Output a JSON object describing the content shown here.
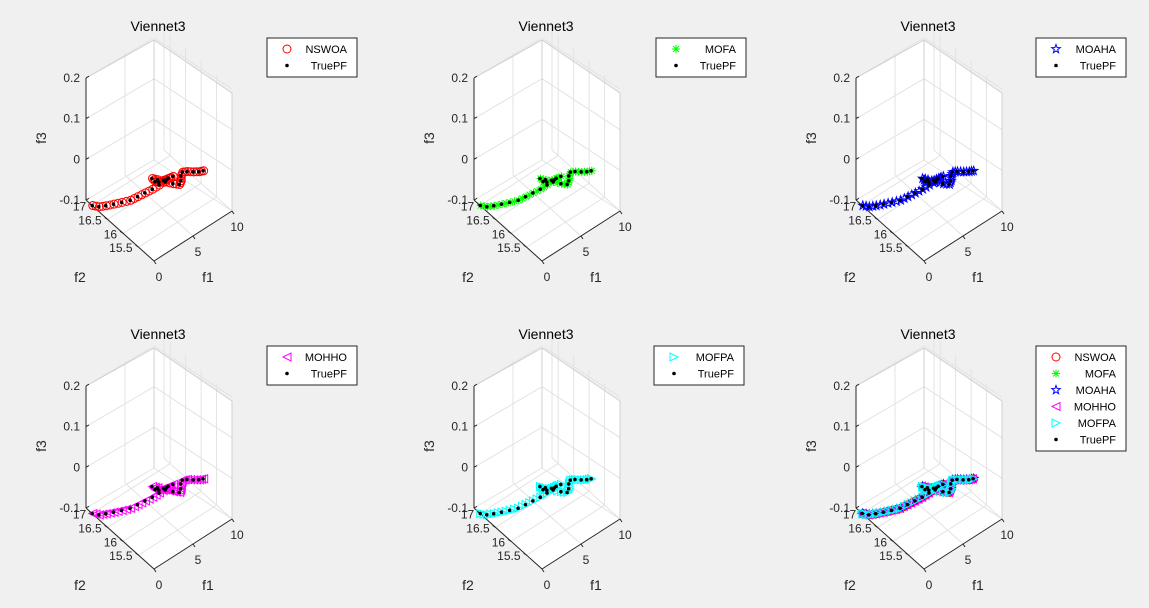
{
  "figure": {
    "background": "#f0f0f0"
  },
  "chart_data": [
    {
      "type": "scatter3d",
      "title": "Viennet3",
      "xlabel": "f1",
      "ylabel": "f2",
      "zlabel": "f3",
      "xlim": [
        0,
        10
      ],
      "ylim": [
        15,
        17.2
      ],
      "zlim": [
        -0.1,
        0.2
      ],
      "xticks": [
        "0",
        "5",
        "10"
      ],
      "yticks": [
        "15.5",
        "16",
        "16.5",
        "17"
      ],
      "zticks": [
        "-0.1",
        "0",
        "0.1",
        "0.2"
      ],
      "series": [
        {
          "name": "NSWOA",
          "marker": "circle",
          "color": "#ff0000"
        },
        {
          "name": "TruePF",
          "marker": "dot",
          "color": "#000000"
        }
      ],
      "legend": [
        "NSWOA",
        "TruePF"
      ]
    },
    {
      "type": "scatter3d",
      "title": "Viennet3",
      "xlabel": "f1",
      "ylabel": "f2",
      "zlabel": "f3",
      "xlim": [
        0,
        10
      ],
      "ylim": [
        15,
        17.2
      ],
      "zlim": [
        -0.1,
        0.2
      ],
      "xticks": [
        "0",
        "5",
        "10"
      ],
      "yticks": [
        "15.5",
        "16",
        "16.5",
        "17"
      ],
      "zticks": [
        "-0.1",
        "0",
        "0.1",
        "0.2"
      ],
      "series": [
        {
          "name": "MOFA",
          "marker": "asterisk",
          "color": "#00ff00"
        },
        {
          "name": "TruePF",
          "marker": "dot",
          "color": "#000000"
        }
      ],
      "legend": [
        "MOFA",
        "TruePF"
      ]
    },
    {
      "type": "scatter3d",
      "title": "Viennet3",
      "xlabel": "f1",
      "ylabel": "f2",
      "zlabel": "f3",
      "xlim": [
        0,
        10
      ],
      "ylim": [
        15,
        17.2
      ],
      "zlim": [
        -0.1,
        0.2
      ],
      "xticks": [
        "0",
        "5",
        "10"
      ],
      "yticks": [
        "15.5",
        "16",
        "16.5",
        "17"
      ],
      "zticks": [
        "-0.1",
        "0",
        "0.1",
        "0.2"
      ],
      "series": [
        {
          "name": "MOAHA",
          "marker": "star",
          "color": "#0000ff"
        },
        {
          "name": "TruePF",
          "marker": "dot",
          "color": "#000000"
        }
      ],
      "legend": [
        "MOAHA",
        "TruePF"
      ]
    },
    {
      "type": "scatter3d",
      "title": "Viennet3",
      "xlabel": "f1",
      "ylabel": "f2",
      "zlabel": "f3",
      "xlim": [
        0,
        10
      ],
      "ylim": [
        15,
        17.2
      ],
      "zlim": [
        -0.1,
        0.2
      ],
      "xticks": [
        "0",
        "5",
        "10"
      ],
      "yticks": [
        "15.5",
        "16",
        "16.5",
        "17"
      ],
      "zticks": [
        "-0.1",
        "0",
        "0.1",
        "0.2"
      ],
      "series": [
        {
          "name": "MOHHO",
          "marker": "triangle-left",
          "color": "#ff00ff"
        },
        {
          "name": "TruePF",
          "marker": "dot",
          "color": "#000000"
        }
      ],
      "legend": [
        "MOHHO",
        "TruePF"
      ]
    },
    {
      "type": "scatter3d",
      "title": "Viennet3",
      "xlabel": "f1",
      "ylabel": "f2",
      "zlabel": "f3",
      "xlim": [
        0,
        10
      ],
      "ylim": [
        15,
        17.2
      ],
      "zlim": [
        -0.1,
        0.2
      ],
      "xticks": [
        "0",
        "5",
        "10"
      ],
      "yticks": [
        "15.5",
        "16",
        "16.5",
        "17"
      ],
      "zticks": [
        "-0.1",
        "0",
        "0.1",
        "0.2"
      ],
      "series": [
        {
          "name": "MOFPA",
          "marker": "triangle-right",
          "color": "#00ffff"
        },
        {
          "name": "TruePF",
          "marker": "dot",
          "color": "#000000"
        }
      ],
      "legend": [
        "MOFPA",
        "TruePF"
      ]
    },
    {
      "type": "scatter3d",
      "title": "Viennet3",
      "xlabel": "f1",
      "ylabel": "f2",
      "zlabel": "f3",
      "xlim": [
        0,
        10
      ],
      "ylim": [
        15,
        17.2
      ],
      "zlim": [
        -0.1,
        0.2
      ],
      "xticks": [
        "0",
        "5",
        "10"
      ],
      "yticks": [
        "15.5",
        "16",
        "16.5",
        "17"
      ],
      "zticks": [
        "-0.1",
        "0",
        "0.1",
        "0.2"
      ],
      "series": [
        {
          "name": "NSWOA",
          "marker": "circle",
          "color": "#ff0000"
        },
        {
          "name": "MOFA",
          "marker": "asterisk",
          "color": "#00ff00"
        },
        {
          "name": "MOAHA",
          "marker": "star",
          "color": "#0000ff"
        },
        {
          "name": "MOHHO",
          "marker": "triangle-left",
          "color": "#ff00ff"
        },
        {
          "name": "MOFPA",
          "marker": "triangle-right",
          "color": "#00ffff"
        },
        {
          "name": "TruePF",
          "marker": "dot",
          "color": "#000000"
        }
      ],
      "legend": [
        "NSWOA",
        "MOFA",
        "MOAHA",
        "MOHHO",
        "MOFPA",
        "TruePF"
      ]
    }
  ],
  "pareto_front": [
    [
      0.0,
      17.0,
      -0.1
    ],
    [
      0.05,
      16.8,
      -0.09
    ],
    [
      0.15,
      16.6,
      -0.075
    ],
    [
      0.35,
      16.4,
      -0.06
    ],
    [
      0.6,
      16.2,
      -0.045
    ],
    [
      0.9,
      16.0,
      -0.03
    ],
    [
      1.25,
      15.85,
      -0.015
    ],
    [
      1.6,
      15.7,
      0.0
    ],
    [
      1.95,
      15.55,
      0.015
    ],
    [
      2.3,
      15.42,
      0.03
    ],
    [
      2.75,
      15.3,
      0.045
    ],
    [
      3.2,
      15.2,
      0.055
    ],
    [
      3.2,
      15.35,
      0.04
    ],
    [
      3.2,
      15.5,
      0.025
    ],
    [
      3.2,
      15.65,
      0.01
    ],
    [
      3.3,
      15.8,
      0.0
    ],
    [
      3.5,
      15.95,
      -0.005
    ],
    [
      3.8,
      15.85,
      -0.005
    ],
    [
      4.2,
      15.7,
      -0.005
    ],
    [
      4.6,
      15.55,
      -0.004
    ],
    [
      5.0,
      15.45,
      -0.004
    ],
    [
      5.4,
      15.5,
      -0.003
    ],
    [
      5.8,
      15.6,
      -0.003
    ],
    [
      6.2,
      15.65,
      -0.002
    ],
    [
      6.6,
      15.6,
      -0.002
    ],
    [
      7.0,
      15.5,
      -0.001
    ],
    [
      7.4,
      15.42,
      0.0
    ],
    [
      7.8,
      15.38,
      0.0
    ]
  ]
}
